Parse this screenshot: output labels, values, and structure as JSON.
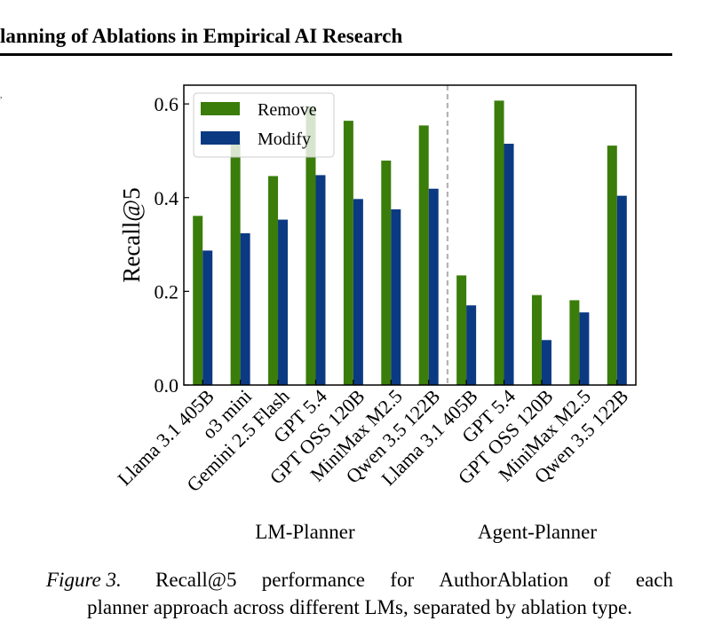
{
  "page": {
    "running_header": "lanning of Ablations in Empirical AI Research"
  },
  "caption": {
    "label": "Figure 3.",
    "line1_words": [
      "Recall@5",
      "performance",
      "for",
      "AuthorAblation",
      "of",
      "each"
    ],
    "line2": "planner approach across different LMs, separated by ablation type."
  },
  "chart_data": {
    "type": "bar",
    "ylabel": "Recall@5",
    "xlabel": "",
    "ylim": [
      0,
      0.64
    ],
    "yticks": [
      0.0,
      0.2,
      0.4,
      0.6
    ],
    "ytick_labels": [
      "0.0",
      "0.2",
      "0.4",
      "0.6"
    ],
    "grid": false,
    "legend_position": "top-left",
    "categories": [
      "Llama 3.1 405B",
      "o3 mini",
      "Gemini 2.5 Flash",
      "GPT 5.4",
      "GPT OSS 120B",
      "MiniMax M2.5",
      "Qwen 3.5 122B",
      "Llama 3.1 405B",
      "GPT 5.4",
      "GPT OSS 120B",
      "MiniMax M2.5",
      "Qwen 3.5 122B"
    ],
    "groups": [
      {
        "label": "LM-Planner",
        "count": 7
      },
      {
        "label": "Agent-Planner",
        "count": 5
      }
    ],
    "series": [
      {
        "name": "Remove",
        "color": "#3a7d0a",
        "values": [
          0.361,
          0.522,
          0.446,
          0.595,
          0.564,
          0.479,
          0.554,
          0.234,
          0.607,
          0.192,
          0.181,
          0.511
        ]
      },
      {
        "name": "Modify",
        "color": "#0b3a82",
        "values": [
          0.287,
          0.324,
          0.353,
          0.448,
          0.397,
          0.375,
          0.419,
          0.17,
          0.515,
          0.096,
          0.155,
          0.404
        ]
      }
    ],
    "separator_color": "#b4b4b4"
  }
}
